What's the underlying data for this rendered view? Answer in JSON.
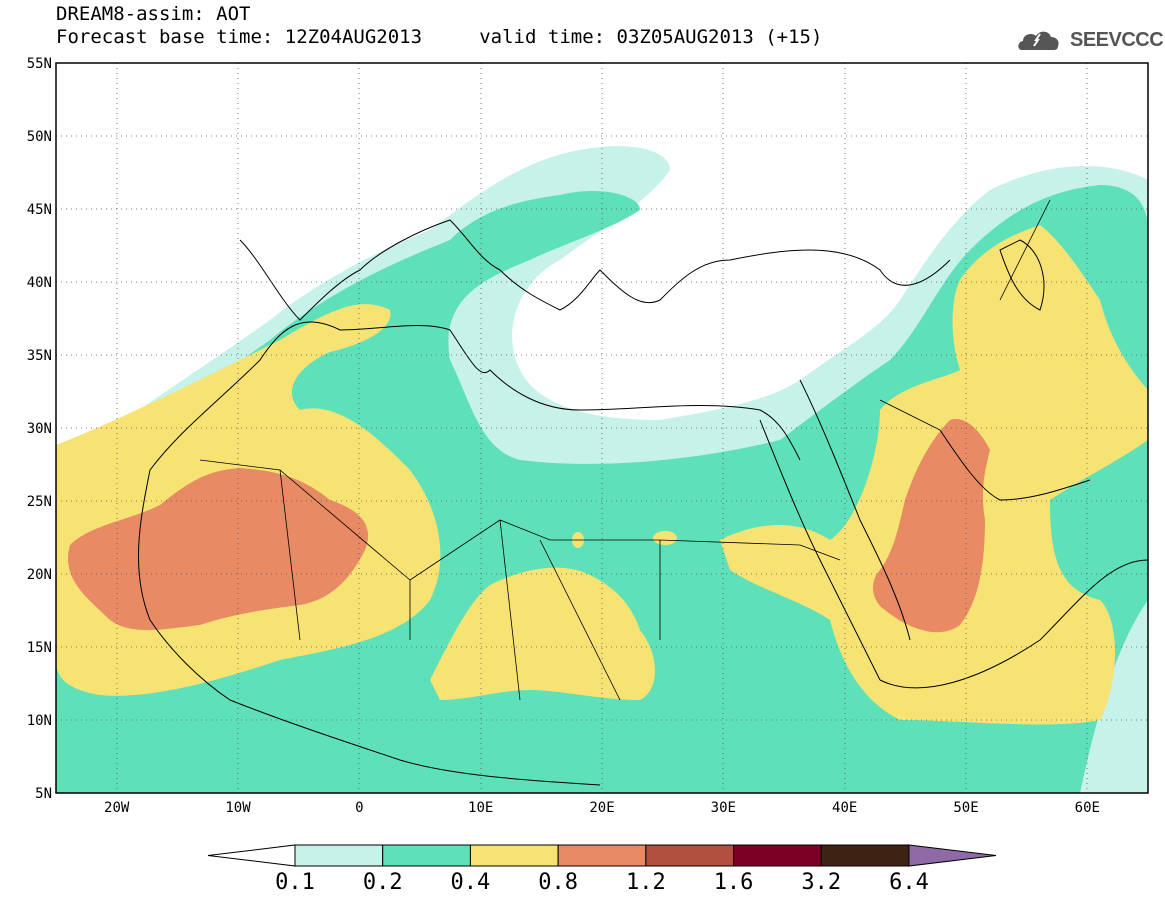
{
  "title": {
    "line1": "DREAM8-assim: AOT",
    "line2": "Forecast base time: 12Z04AUG2013     valid time: 03Z05AUG2013 (+15)"
  },
  "logo": {
    "text": "SEEVCCC",
    "icon": "cloud-icon"
  },
  "map": {
    "lon_range": [
      -25,
      65
    ],
    "lat_range": [
      5,
      55
    ],
    "lat_ticks": [
      "55N",
      "50N",
      "45N",
      "40N",
      "35N",
      "30N",
      "25N",
      "20N",
      "15N",
      "10N",
      "5N"
    ],
    "lon_ticks": [
      "20W",
      "10W",
      "0",
      "10E",
      "20E",
      "30E",
      "40E",
      "50E",
      "60E"
    ],
    "gridlines": "dotted"
  },
  "colorbar": {
    "colors": [
      "#ffffff",
      "#c6f2ea",
      "#5ee0b8",
      "#f7e374",
      "#e88a63",
      "#b25040",
      "#7a0024",
      "#3e2214",
      "#8f6aa6"
    ],
    "labels": [
      "0.1",
      "0.2",
      "0.4",
      "0.8",
      "1.2",
      "1.6",
      "3.2",
      "6.4"
    ]
  }
}
